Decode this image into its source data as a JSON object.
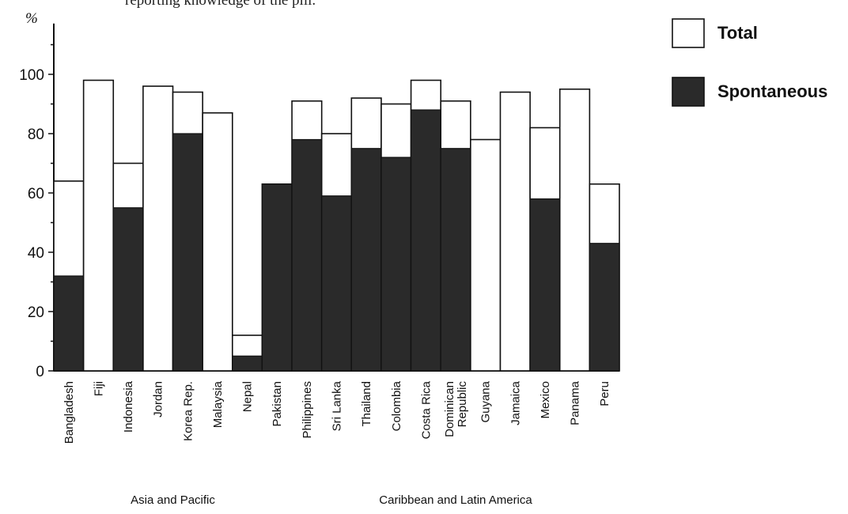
{
  "caption": "reporting knowledge of the pill.",
  "chart_data": {
    "type": "bar",
    "unit_label": "%",
    "ylim": [
      0,
      115
    ],
    "yticks": [
      0,
      20,
      40,
      60,
      80,
      100
    ],
    "ytick_labels": [
      "0",
      "20",
      "40",
      "60",
      "80",
      "100"
    ],
    "categories": [
      "Bangladesh",
      "Fiji",
      "Indonesia",
      "Jordan",
      "Korea Rep.",
      "Malaysia",
      "Nepal",
      "Pakistan",
      "Philippines",
      "Sri Lanka",
      "Thailand",
      "Colombia",
      "Costa Rica",
      "Dominican Republic",
      "Guyana",
      "Jamaica",
      "Mexico",
      "Panama",
      "Peru"
    ],
    "category_label_lines": [
      [
        "Bangladesh"
      ],
      [
        "Fiji"
      ],
      [
        "Indonesia"
      ],
      [
        "Jordan"
      ],
      [
        "Korea Rep."
      ],
      [
        "Malaysia"
      ],
      [
        "Nepal"
      ],
      [
        "Pakistan"
      ],
      [
        "Philippines"
      ],
      [
        "Sri Lanka"
      ],
      [
        "Thailand"
      ],
      [
        "Colombia"
      ],
      [
        "Costa Rica"
      ],
      [
        "Dominican",
        "Republic"
      ],
      [
        "Guyana"
      ],
      [
        "Jamaica"
      ],
      [
        "Mexico"
      ],
      [
        "Panama"
      ],
      [
        "Peru"
      ]
    ],
    "series": [
      {
        "name": "Total",
        "color": "#ffffff",
        "values": [
          64,
          98,
          70,
          96,
          94,
          87,
          12,
          63,
          91,
          80,
          92,
          90,
          98,
          91,
          78,
          94,
          82,
          95,
          63
        ]
      },
      {
        "name": "Spontaneous",
        "color": "#2a2a2a",
        "values": [
          32,
          0,
          55,
          0,
          80,
          0,
          5,
          63,
          78,
          59,
          75,
          72,
          88,
          75,
          0,
          0,
          58,
          0,
          43
        ]
      }
    ],
    "groups": [
      {
        "label": "Asia and Pacific",
        "from": 0,
        "to": 7
      },
      {
        "label": "Caribbean and Latin America",
        "from": 8,
        "to": 18
      }
    ],
    "legend": {
      "position": "top-right",
      "items": [
        {
          "label": "Total",
          "color": "#ffffff"
        },
        {
          "label": "Spontaneous",
          "color": "#2a2a2a"
        }
      ]
    },
    "grid": false
  }
}
